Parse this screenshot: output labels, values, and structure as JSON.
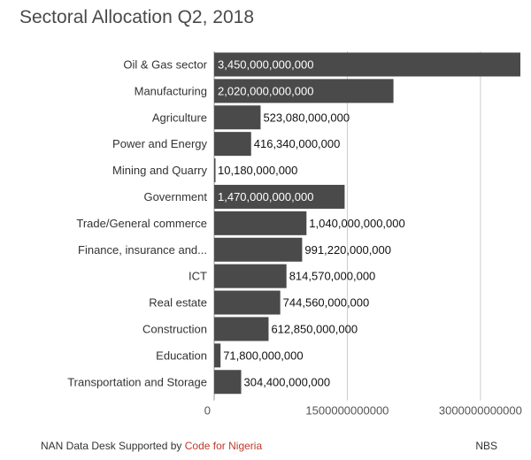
{
  "header": {
    "title": "Sectoral Allocation Q2, 2018"
  },
  "footer": {
    "credit_text": "NAN Data Desk Supported by",
    "credit_link": "Code for Nigeria",
    "source": "NBS"
  },
  "chart_data": {
    "type": "bar",
    "orientation": "horizontal",
    "title": "Sectoral Allocation Q2, 2018",
    "categories": [
      "Oil & Gas sector",
      "Manufacturing",
      "Agriculture",
      "Power and Energy",
      "Mining and Quarry",
      "Government",
      "Trade/General commerce",
      "Finance, insurance and...",
      "ICT",
      "Real estate",
      "Construction",
      "Education",
      "Transportation and Storage"
    ],
    "values": [
      3450000000000,
      2020000000000,
      523080000000,
      416340000000,
      10180000000,
      1470000000000,
      1040000000000,
      991220000000,
      814570000000,
      744560000000,
      612850000000,
      71800000000,
      304400000000
    ],
    "value_labels": [
      "3,450,000,000,000",
      "2,020,000,000,000",
      "523,080,000,000",
      "416,340,000,000",
      "10,180,000,000",
      "1,470,000,000,000",
      "1,040,000,000,000",
      "991,220,000,000",
      "814,570,000,000",
      "744,560,000,000",
      "612,850,000,000",
      "71,800,000,000",
      "304,400,000,000"
    ],
    "label_inside": [
      true,
      true,
      false,
      false,
      false,
      true,
      false,
      false,
      false,
      false,
      false,
      false,
      false
    ],
    "xlim": [
      0,
      3450000000000
    ],
    "x_ticks": [
      0,
      1500000000000,
      3000000000000
    ],
    "x_tick_labels": [
      "0",
      "1500000000000",
      "3000000000000"
    ],
    "bar_color": "#4a4a4a",
    "grid": true
  }
}
